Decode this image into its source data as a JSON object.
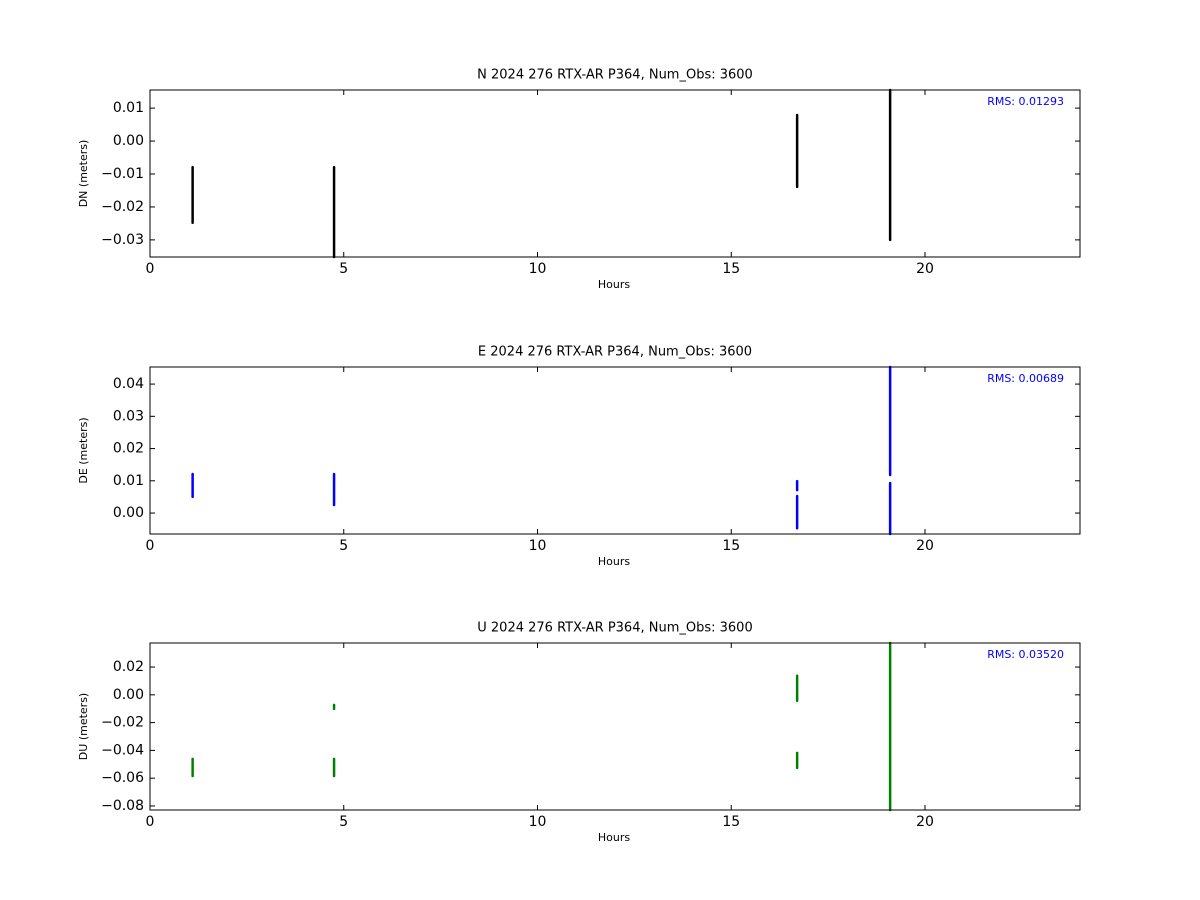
{
  "chart_data": [
    {
      "type": "line",
      "title": "N 2024 276 RTX-AR  P364, Num_Obs: 3600",
      "xlabel": "Hours",
      "ylabel": "DN (meters)",
      "annotation": "RMS:  0.01293",
      "annotation_color": "#0000ff",
      "xlim": [
        0,
        24
      ],
      "xticks": [
        0,
        5,
        10,
        15,
        20
      ],
      "ylim": [
        -0.0352,
        0.0155
      ],
      "yticks": [
        {
          "value": -0.03,
          "label": "−0.03"
        },
        {
          "value": -0.02,
          "label": "−0.02"
        },
        {
          "value": -0.01,
          "label": "−0.01"
        },
        {
          "value": 0,
          "label": "0.00"
        },
        0.01
      ],
      "x": [
        1.1,
        1.1,
        null,
        4.75,
        4.75,
        null,
        16.7,
        16.7,
        null,
        19.1,
        19.1
      ],
      "series": [
        {
          "color": "#000000",
          "values": [
            -0.0079,
            -0.0248,
            null,
            -0.0079,
            -0.0352,
            null,
            0.0079,
            -0.0139,
            null,
            0.0155,
            -0.03
          ]
        }
      ]
    },
    {
      "type": "line",
      "title": "E 2024 276 RTX-AR  P364, Num_Obs: 3600",
      "xlabel": "Hours",
      "ylabel": "DE (meters)",
      "annotation": "RMS:  0.00689",
      "annotation_color": "#0000ff",
      "xlim": [
        0,
        24
      ],
      "xticks": [
        0,
        5,
        10,
        15,
        20
      ],
      "ylim": [
        -0.0065,
        0.0453
      ],
      "yticks": [
        {
          "value": 0,
          "label": "0.00"
        },
        0.01,
        0.02,
        0.03,
        0.04
      ],
      "x": [
        1.1,
        1.1,
        null,
        4.75,
        4.75,
        null,
        16.7,
        16.7,
        null,
        16.7,
        16.7,
        null,
        19.1,
        19.1,
        null,
        19.1,
        19.1
      ],
      "series": [
        {
          "color": "#0000ff",
          "values": [
            0.0121,
            0.005,
            null,
            0.0121,
            0.0025,
            null,
            0.0099,
            0.0071,
            null,
            0.0053,
            -0.0047,
            null,
            0.0453,
            0.0118,
            null,
            0.0093,
            -0.0065
          ]
        }
      ]
    },
    {
      "type": "line",
      "title": "U 2024 276 RTX-AR  P364, Num_Obs: 3600",
      "xlabel": "Hours",
      "ylabel": "DU (meters)",
      "annotation": "RMS:  0.03520",
      "annotation_color": "#0000ff",
      "xlim": [
        0,
        24
      ],
      "xticks": [
        0,
        5,
        10,
        15,
        20
      ],
      "ylim": [
        -0.0829,
        0.0373
      ],
      "yticks": [
        {
          "value": -0.08,
          "label": "−0.08"
        },
        {
          "value": -0.06,
          "label": "−0.06"
        },
        {
          "value": -0.04,
          "label": "−0.04"
        },
        {
          "value": -0.02,
          "label": "−0.02"
        },
        {
          "value": 0,
          "label": "0.00"
        },
        0.02
      ],
      "x": [
        1.1,
        1.1,
        null,
        4.75,
        4.75,
        null,
        4.75,
        4.75,
        null,
        16.7,
        16.7,
        null,
        16.7,
        16.7,
        null,
        19.1,
        19.1
      ],
      "series": [
        {
          "color": "#008000",
          "values": [
            -0.0461,
            -0.0584,
            null,
            -0.0072,
            -0.0101,
            null,
            -0.0461,
            -0.0584,
            null,
            0.0137,
            -0.0043,
            null,
            -0.0418,
            -0.0526,
            null,
            0.0373,
            -0.0829
          ]
        }
      ]
    }
  ]
}
